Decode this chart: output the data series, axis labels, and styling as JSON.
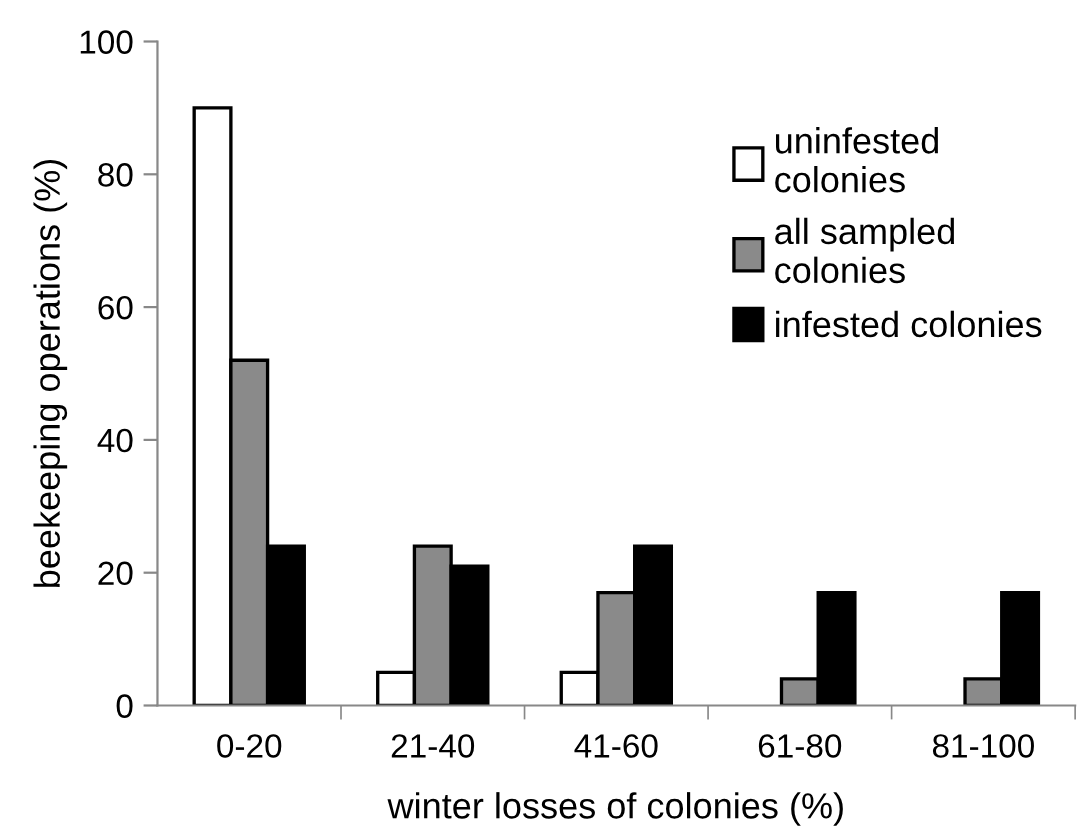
{
  "chart_data": {
    "type": "bar",
    "xlabel": "winter losses of colonies (%)",
    "ylabel": "beekeeping operations (%)",
    "categories": [
      "0-20",
      "21-40",
      "41-60",
      "61-80",
      "81-100"
    ],
    "series": [
      {
        "name": "uninfested\ncolonies",
        "color": "#ffffff",
        "values": [
          90,
          5,
          5,
          0,
          0
        ]
      },
      {
        "name": "all sampled\ncolonies",
        "color": "#8a8a8a",
        "values": [
          52,
          24,
          17,
          4,
          4
        ]
      },
      {
        "name": "infested colonies",
        "color": "#000000",
        "values": [
          24,
          21,
          24,
          17,
          17
        ]
      }
    ],
    "ylim": [
      0,
      100
    ],
    "yticks": [
      0,
      20,
      40,
      60,
      80,
      100
    ],
    "grid": false,
    "legend": "top right"
  }
}
